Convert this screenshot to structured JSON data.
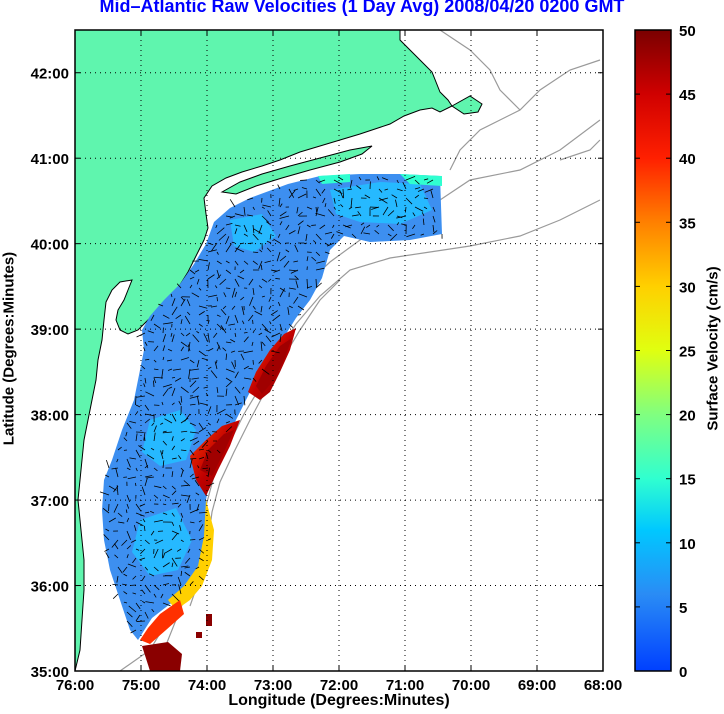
{
  "title": "Mid–Atlantic Raw Velocities (1 Day Avg) 2008/04/20 0200 GMT",
  "x_axis": {
    "label": "Longitude (Degrees:Minutes)",
    "ticks": [
      "76:00",
      "75:00",
      "74:00",
      "73:00",
      "72:00",
      "71:00",
      "70:00",
      "69:00",
      "68:00"
    ],
    "range": [
      -76,
      -68
    ]
  },
  "y_axis": {
    "label": "Latitude (Degrees:Minutes)",
    "ticks": [
      "35:00",
      "36:00",
      "37:00",
      "38:00",
      "39:00",
      "40:00",
      "41:00",
      "42:00"
    ],
    "range": [
      35,
      42.5
    ]
  },
  "colorbar": {
    "label": "Surface Velocity (cm/s)",
    "ticks": [
      "0",
      "5",
      "10",
      "15",
      "20",
      "25",
      "30",
      "35",
      "40",
      "45",
      "50"
    ],
    "range": [
      0,
      50
    ],
    "colormap": "jet"
  },
  "colors": {
    "land": "#5ff5ae",
    "title": "#0000ff",
    "coastline": "#000000",
    "bathymetry": "#9a9a9a",
    "grid": "#000000"
  },
  "grid": true
}
